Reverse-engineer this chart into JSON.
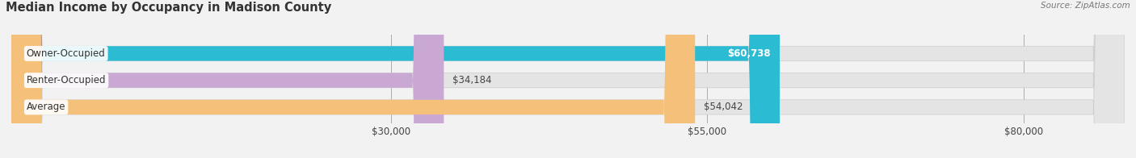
{
  "title": "Median Income by Occupancy in Madison County",
  "source": "Source: ZipAtlas.com",
  "categories": [
    "Owner-Occupied",
    "Renter-Occupied",
    "Average"
  ],
  "values": [
    60738,
    34184,
    54042
  ],
  "bar_colors": [
    "#2bbcd4",
    "#c9a8d4",
    "#f5c07a"
  ],
  "value_labels": [
    "$60,738",
    "$34,184",
    "$54,042"
  ],
  "x_ticks": [
    30000,
    55000,
    80000
  ],
  "x_tick_labels": [
    "$30,000",
    "$55,000",
    "$80,000"
  ],
  "xlim": [
    0,
    88000
  ],
  "bar_height": 0.55,
  "background_color": "#f2f2f2",
  "bar_background_color": "#e4e4e4",
  "title_fontsize": 10.5,
  "source_fontsize": 7.5,
  "label_fontsize": 8.5,
  "value_fontsize": 8.5
}
